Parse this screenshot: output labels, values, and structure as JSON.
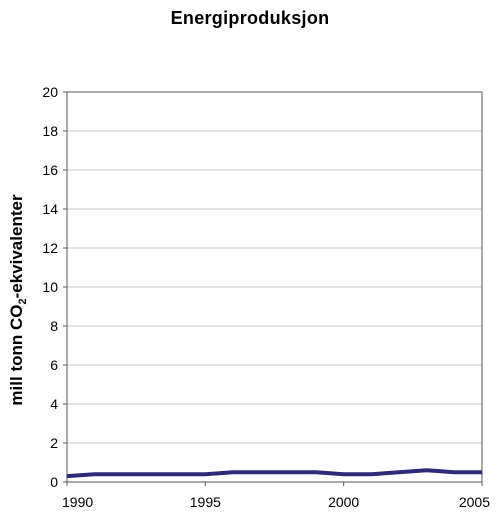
{
  "chart_data": {
    "type": "line",
    "title": "Energiproduksjon",
    "ylabel_prefix": "mill tonn CO",
    "ylabel_sub": "2",
    "ylabel_suffix": "-ekvivalenter",
    "xlabel": "",
    "ylim": [
      0,
      20
    ],
    "y_ticks": [
      "0",
      "2",
      "4",
      "6",
      "8",
      "10",
      "12",
      "14",
      "16",
      "18",
      "20"
    ],
    "xlim": [
      1990,
      2005
    ],
    "x_ticks": [
      "1990",
      "1995",
      "2000",
      "2005"
    ],
    "grid": true,
    "series": [
      {
        "color": "#2e2a7a",
        "x": [
          1990,
          1991,
          1992,
          1993,
          1994,
          1995,
          1996,
          1997,
          1998,
          1999,
          2000,
          2001,
          2002,
          2003,
          2004,
          2005
        ],
        "y": [
          0.3,
          0.4,
          0.4,
          0.4,
          0.4,
          0.4,
          0.5,
          0.5,
          0.5,
          0.5,
          0.4,
          0.4,
          0.5,
          0.6,
          0.5,
          0.5
        ]
      }
    ]
  }
}
